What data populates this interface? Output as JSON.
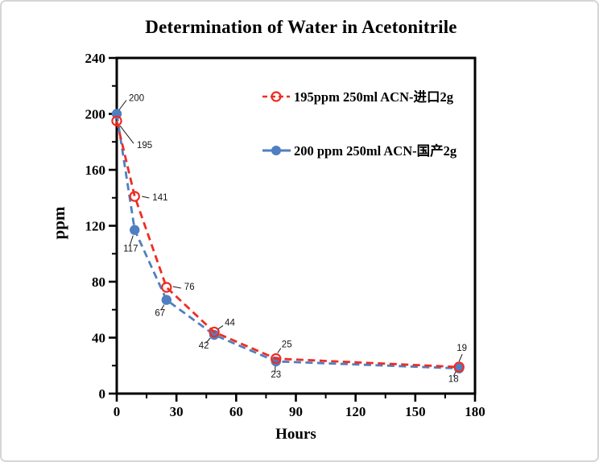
{
  "window": {
    "background_color": "#ffffff",
    "border_color": "#d6d6d6"
  },
  "chart_data": {
    "type": "line",
    "title": "Determination of Water in Acetonitrile",
    "xlabel": "Hours",
    "ylabel": "ppm",
    "xlim": [
      0,
      180
    ],
    "ylim": [
      0,
      240
    ],
    "x_major_ticks": [
      0,
      30,
      60,
      90,
      120,
      150,
      180
    ],
    "x_minor_ticks": [
      15,
      45,
      75,
      105,
      135,
      165
    ],
    "y_major_ticks": [
      0,
      40,
      80,
      120,
      160,
      200,
      240
    ],
    "y_minor_ticks": [
      20,
      60,
      100,
      140,
      180,
      220
    ],
    "grid": false,
    "legend_position": "top-right-inside",
    "axis_color": "#000000",
    "series": [
      {
        "name": "195ppm  250ml ACN-进口2g",
        "color": "#ed2e24",
        "marker": "open-circle",
        "line_style": "dashed",
        "x": [
          0,
          9,
          25,
          49,
          80,
          172
        ],
        "values": [
          195,
          141,
          76,
          44,
          25,
          19
        ],
        "point_labels": [
          "195",
          "141",
          "76",
          "44",
          "25",
          "19"
        ]
      },
      {
        "name": "200 ppm 250ml ACN-国产2g",
        "color": "#4f7fc1",
        "marker": "filled-circle",
        "line_style": "dashed",
        "x": [
          0,
          9,
          25,
          49,
          80,
          172
        ],
        "values": [
          200,
          117,
          67,
          42,
          23,
          18
        ],
        "point_labels": [
          "200",
          "117",
          "67",
          "42",
          "23",
          "18"
        ]
      }
    ]
  }
}
